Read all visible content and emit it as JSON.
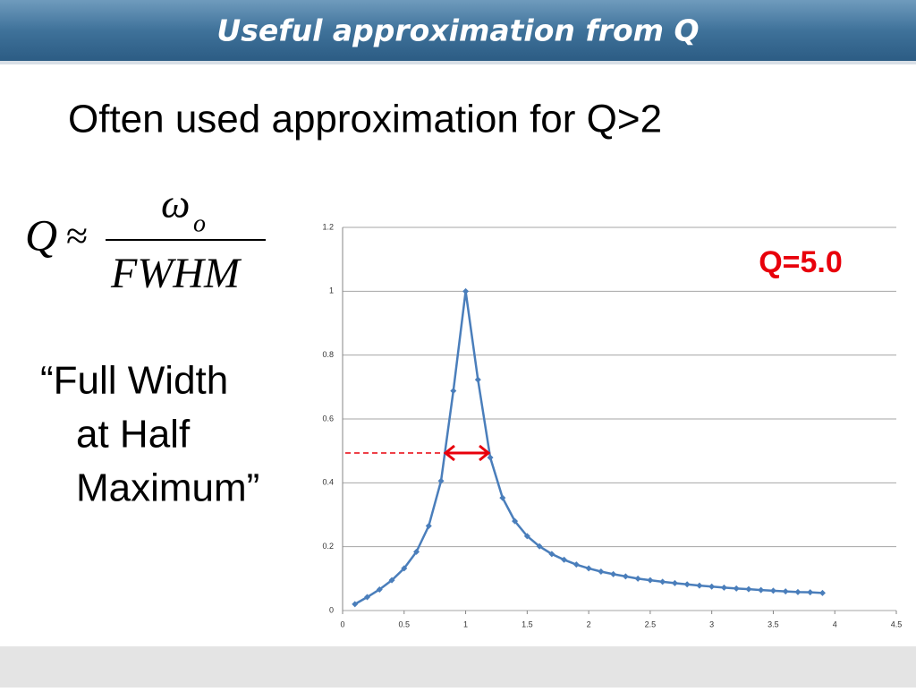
{
  "header": {
    "title": "Useful approximation from Q"
  },
  "subtitle": "Often used approximation for Q>2",
  "formula": {
    "lhs": "Q",
    "relation": "≈",
    "numerator": "ω",
    "numerator_subscript": "o",
    "denominator": "FWHM"
  },
  "quote": {
    "lines": [
      "“Full Width",
      "at Half",
      "Maximum”"
    ]
  },
  "chart_data": {
    "type": "line",
    "annotation": "Q=5.0",
    "x": [
      0.1,
      0.2,
      0.3,
      0.4,
      0.5,
      0.6,
      0.7,
      0.8,
      0.9,
      1.0,
      1.1,
      1.2,
      1.3,
      1.4,
      1.5,
      1.6,
      1.7,
      1.8,
      1.9,
      2.0,
      2.1,
      2.2,
      2.3,
      2.4,
      2.5,
      2.6,
      2.7,
      2.8,
      2.9,
      3.0,
      3.1,
      3.2,
      3.3,
      3.4,
      3.5,
      3.6,
      3.7,
      3.8,
      3.9
    ],
    "series": [
      {
        "color": "#4a7ebb",
        "values": [
          0.02,
          0.042,
          0.066,
          0.095,
          0.132,
          0.184,
          0.265,
          0.406,
          0.688,
          1.0,
          0.723,
          0.479,
          0.353,
          0.28,
          0.233,
          0.201,
          0.177,
          0.159,
          0.144,
          0.132,
          0.122,
          0.114,
          0.107,
          0.1,
          0.095,
          0.09,
          0.086,
          0.082,
          0.078,
          0.075,
          0.072,
          0.069,
          0.067,
          0.064,
          0.062,
          0.06,
          0.058,
          0.057,
          0.055
        ]
      }
    ],
    "xlim": [
      0,
      4.5
    ],
    "xticks": [
      0,
      0.5,
      1,
      1.5,
      2,
      2.5,
      3,
      3.5,
      4,
      4.5
    ],
    "ylim": [
      0,
      1.2
    ],
    "yticks": [
      0,
      0.2,
      0.4,
      0.6,
      0.8,
      1,
      1.2
    ],
    "grid": true
  }
}
